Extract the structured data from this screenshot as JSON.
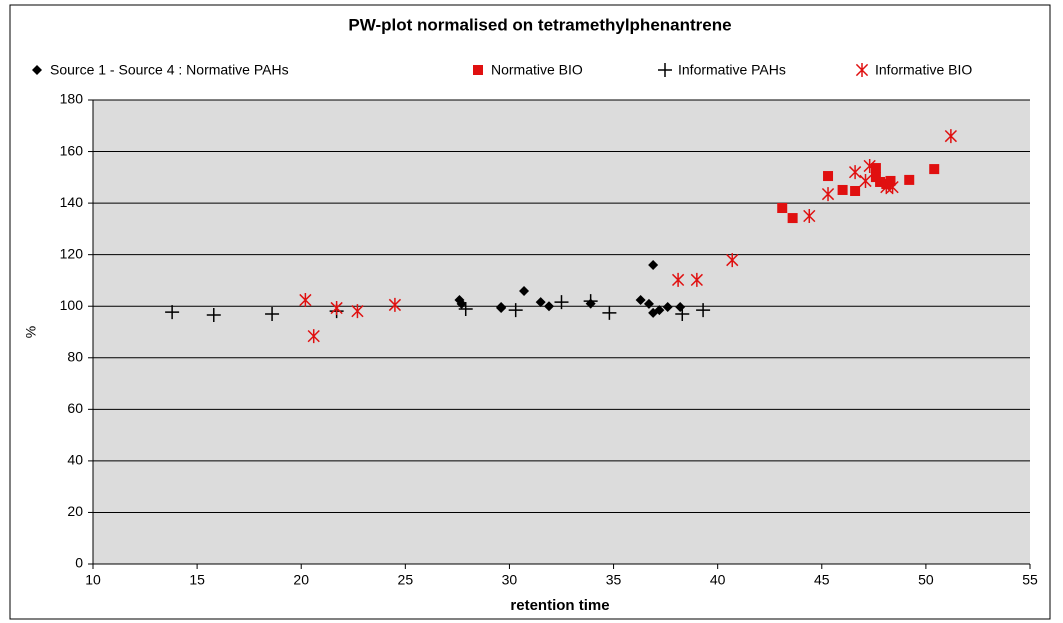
{
  "chart_data": {
    "type": "scatter",
    "title": "PW-plot normalised on tetramethylphenantrene",
    "x_label": "retention time",
    "y_label": "%",
    "xlim": [
      10,
      55
    ],
    "xticks": [
      10,
      15,
      20,
      25,
      30,
      35,
      40,
      45,
      50,
      55
    ],
    "ylim": [
      0,
      180
    ],
    "yticks": [
      0,
      20,
      40,
      60,
      80,
      100,
      120,
      140,
      160,
      180
    ],
    "grid": true,
    "series": [
      {
        "name": "Source 1 - Source 4 : Normative PAHs",
        "marker": "diamond",
        "color": "#000000",
        "x": [
          27.6,
          27.7,
          29.6,
          29.6,
          30.7,
          31.5,
          31.9,
          33.9,
          36.3,
          36.7,
          36.9,
          36.9,
          37.2,
          37.6,
          38.2
        ],
        "values": [
          102.4,
          100.9,
          99.7,
          99.3,
          105.9,
          101.6,
          100,
          101,
          102.4,
          100.9,
          116,
          97.4,
          98.5,
          99.7,
          99.7
        ]
      },
      {
        "name": "Normative BIO",
        "marker": "square",
        "color": "#e01010",
        "x": [
          43.1,
          43.6,
          45.3,
          46.0,
          46.6,
          47.6,
          47.6,
          47.8,
          48.1,
          48.3,
          49.2,
          50.4
        ],
        "values": [
          138.1,
          134.2,
          150.5,
          145.1,
          144.7,
          153.6,
          150.1,
          148.2,
          147.4,
          148.6,
          149,
          153.2
        ]
      },
      {
        "name": "Informative PAHs",
        "marker": "plus",
        "color": "#000000",
        "x": [
          13.8,
          15.8,
          18.6,
          21.7,
          27.9,
          30.3,
          32.5,
          33.9,
          34.8,
          38.3,
          39.3
        ],
        "values": [
          97.7,
          96.6,
          97,
          98.1,
          98.9,
          98.5,
          101.6,
          102,
          97.4,
          97,
          98.5
        ]
      },
      {
        "name": "Informative BIO",
        "marker": "asterisk",
        "color": "#e01010",
        "x": [
          20.2,
          20.6,
          21.7,
          22.7,
          24.5,
          38.1,
          39.0,
          40.7,
          44.4,
          45.3,
          46.6,
          47.1,
          47.3,
          48.1,
          48.4,
          51.2
        ],
        "values": [
          102.4,
          88.4,
          99.3,
          98.1,
          100.5,
          110.2,
          110.2,
          117.9,
          135,
          143.5,
          152,
          148.6,
          154.4,
          146.2,
          146.2,
          166
        ]
      }
    ]
  }
}
